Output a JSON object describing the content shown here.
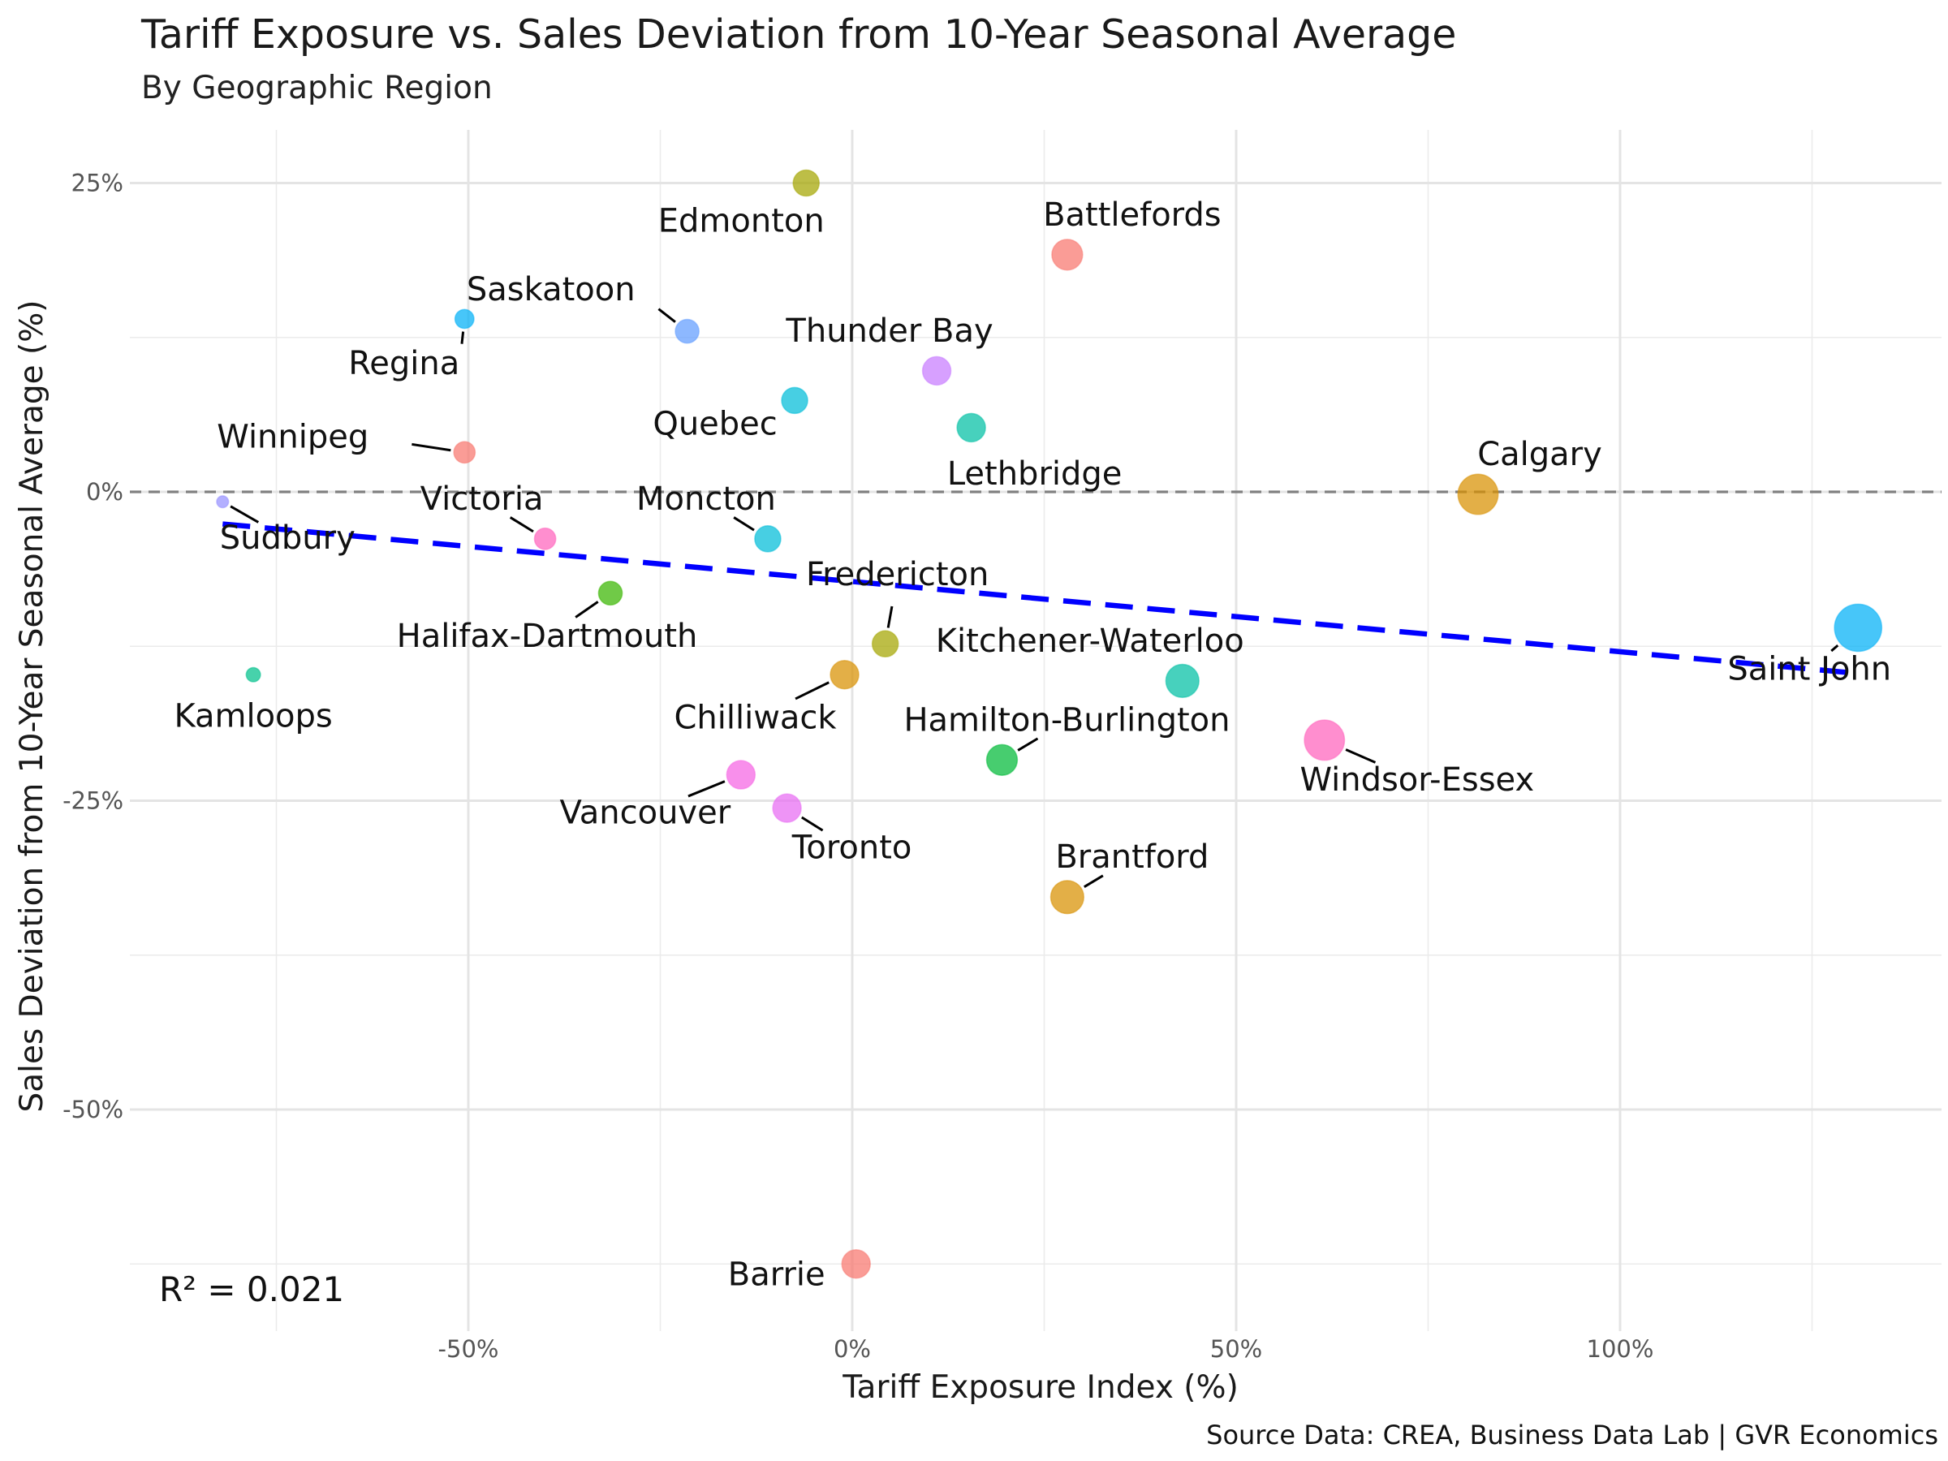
{
  "chart_data": {
    "type": "scatter",
    "title": "Tariff Exposure vs. Sales Deviation from 10-Year Seasonal Average",
    "subtitle": "By Geographic Region",
    "xlabel": "Tariff Exposure Index (%)",
    "ylabel": "Sales Deviation from 10-Year Seasonal Average (%)",
    "caption": "Source Data: CREA, Business Data Lab | GVR Economics",
    "annotation": "R² = 0.021",
    "xlim": [
      -90,
      142
    ],
    "ylim": [
      -67,
      30
    ],
    "x_ticks": [
      -50,
      0,
      50,
      100
    ],
    "x_tick_labels": [
      "-50%",
      "0%",
      "50%",
      "100%"
    ],
    "y_ticks": [
      25,
      0,
      -25,
      -50
    ],
    "y_tick_labels": [
      "25%",
      "0%",
      "-25%",
      "-50%"
    ],
    "grid": true,
    "reference_line_y": 0,
    "trend_line": {
      "x": [
        -82,
        131
      ],
      "y": [
        -2.6,
        -14.7
      ]
    },
    "points": [
      {
        "name": "Edmonton",
        "x": -6,
        "y": 25,
        "size": 9,
        "color": "#A3A500"
      },
      {
        "name": "Battlefords",
        "x": 28,
        "y": 19.2,
        "size": 11,
        "color": "#F8766D"
      },
      {
        "name": "Saskatoon",
        "x": -21.5,
        "y": 13,
        "size": 8,
        "color": "#619CFF"
      },
      {
        "name": "Regina",
        "x": -50.5,
        "y": 14,
        "size": 6,
        "color": "#00B0F6"
      },
      {
        "name": "Thunder Bay",
        "x": 11,
        "y": 9.8,
        "size": 10,
        "color": "#C77CFF"
      },
      {
        "name": "Quebec",
        "x": -7.5,
        "y": 7.4,
        "size": 9,
        "color": "#00BCD8"
      },
      {
        "name": "Lethbridge",
        "x": 15.5,
        "y": 5.2,
        "size": 10,
        "color": "#00BFA3"
      },
      {
        "name": "Winnipeg",
        "x": -50.5,
        "y": 3.2,
        "size": 7,
        "color": "#F8766D"
      },
      {
        "name": "Calgary",
        "x": 81.5,
        "y": -0.2,
        "size": 15,
        "color": "#D89000"
      },
      {
        "name": "Sudbury",
        "x": -82,
        "y": -0.8,
        "size": 3,
        "color": "#9590FF"
      },
      {
        "name": "Victoria",
        "x": -40,
        "y": -3.8,
        "size": 7,
        "color": "#FF62BC"
      },
      {
        "name": "Moncton",
        "x": -11,
        "y": -3.8,
        "size": 9,
        "color": "#00BCD8"
      },
      {
        "name": "Halifax-Dartmouth",
        "x": -31.5,
        "y": -8.2,
        "size": 8,
        "color": "#39B600"
      },
      {
        "name": "Fredericton",
        "x": 4.3,
        "y": -12.3,
        "size": 9,
        "color": "#A3A500"
      },
      {
        "name": "Saint John",
        "x": 131,
        "y": -11,
        "size": 18,
        "color": "#00B0F6"
      },
      {
        "name": "Kamloops",
        "x": -78,
        "y": -14.8,
        "size": 4,
        "color": "#00C08B"
      },
      {
        "name": "Chilliwack",
        "x": -1,
        "y": -14.8,
        "size": 10,
        "color": "#D89000"
      },
      {
        "name": "Kitchener-Waterloo",
        "x": 43,
        "y": -15.3,
        "size": 12,
        "color": "#00BFA3"
      },
      {
        "name": "Hamilton-Burlington",
        "x": 19.5,
        "y": -21.7,
        "size": 11,
        "color": "#00BA38"
      },
      {
        "name": "Windsor-Essex",
        "x": 61.5,
        "y": -20.1,
        "size": 15,
        "color": "#FF62BC"
      },
      {
        "name": "Vancouver",
        "x": -14.5,
        "y": -22.9,
        "size": 10,
        "color": "#F564E3"
      },
      {
        "name": "Toronto",
        "x": -8.5,
        "y": -25.6,
        "size": 10,
        "color": "#E76BF3"
      },
      {
        "name": "Brantford",
        "x": 28,
        "y": -32.8,
        "size": 12,
        "color": "#D89000"
      },
      {
        "name": "Barrie",
        "x": 0.5,
        "y": -62.5,
        "size": 10,
        "color": "#F8766D"
      }
    ]
  }
}
